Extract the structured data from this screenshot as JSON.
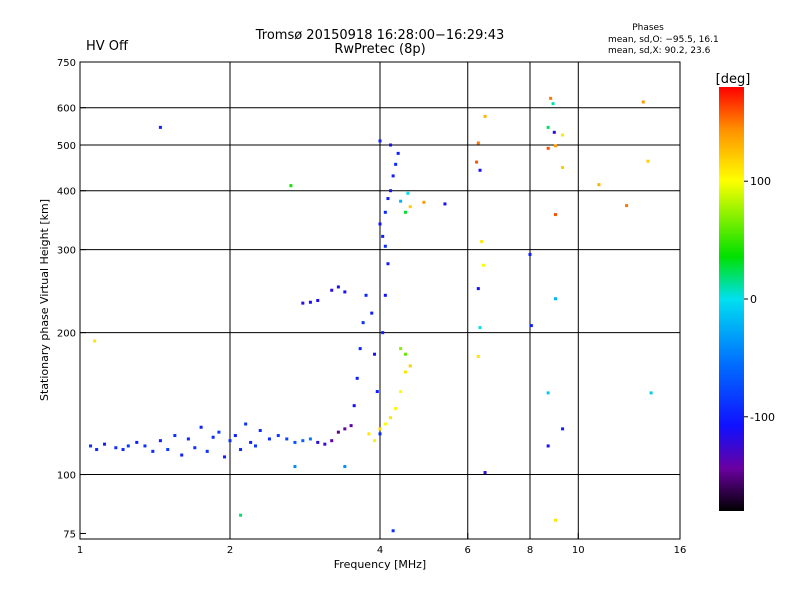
{
  "chart_data": {
    "type": "scatter",
    "title": "Tromsø 20150918 16:28:00−16:29:43",
    "subtitle": "RwPretec (8p)",
    "status_label": "HV Off",
    "status_color": "#dd0000",
    "phase_info": {
      "title": "Phases",
      "line1": "mean, sd,O: −95.5, 16.1",
      "line2": "mean, sd,X:  90.2, 23.6"
    },
    "xlabel": "Frequency [MHz]",
    "ylabel": "Stationary phase Virtual Height [km]",
    "xscale": "log",
    "yscale": "log",
    "xlim": [
      1,
      16
    ],
    "ylim": [
      73,
      750
    ],
    "x_ticks": [
      1,
      2,
      4,
      6,
      8,
      10,
      16
    ],
    "y_ticks": [
      75,
      100,
      200,
      300,
      400,
      500,
      600,
      750
    ],
    "x_gridlines": [
      2,
      4,
      6,
      8,
      10
    ],
    "y_gridlines": [
      100,
      200,
      300,
      400,
      500,
      600
    ],
    "colorbar": {
      "label": "[deg]",
      "range": [
        -180,
        180
      ],
      "ticks": [
        100,
        0,
        -100
      ]
    },
    "points": [
      [
        1.05,
        115,
        -90
      ],
      [
        1.08,
        113,
        -95
      ],
      [
        1.12,
        116,
        -100
      ],
      [
        1.18,
        114,
        -90
      ],
      [
        1.22,
        113,
        -95
      ],
      [
        1.25,
        115,
        -85
      ],
      [
        1.3,
        117,
        -100
      ],
      [
        1.35,
        115,
        -90
      ],
      [
        1.4,
        112,
        -95
      ],
      [
        1.45,
        118,
        -100
      ],
      [
        1.5,
        113,
        -85
      ],
      [
        1.55,
        121,
        -90
      ],
      [
        1.6,
        110,
        -100
      ],
      [
        1.65,
        119,
        -95
      ],
      [
        1.7,
        114,
        -90
      ],
      [
        1.75,
        126,
        -100
      ],
      [
        1.8,
        112,
        -90
      ],
      [
        1.85,
        120,
        -95
      ],
      [
        1.9,
        123,
        -85
      ],
      [
        1.95,
        109,
        -100
      ],
      [
        2.0,
        118,
        -90
      ],
      [
        2.05,
        121,
        -100
      ],
      [
        2.1,
        113,
        -95
      ],
      [
        2.15,
        128,
        -90
      ],
      [
        2.2,
        117,
        -100
      ],
      [
        2.25,
        115,
        -85
      ],
      [
        2.3,
        124,
        -95
      ],
      [
        2.4,
        119,
        -90
      ],
      [
        2.5,
        121,
        -85
      ],
      [
        2.6,
        119,
        -80
      ],
      [
        2.7,
        117,
        -70
      ],
      [
        2.8,
        118,
        -60
      ],
      [
        2.9,
        119,
        -50
      ],
      [
        3.0,
        117,
        -120
      ],
      [
        3.1,
        116,
        -125
      ],
      [
        3.2,
        118,
        -140
      ],
      [
        3.3,
        123,
        -150
      ],
      [
        3.4,
        125,
        -145
      ],
      [
        3.5,
        127,
        -140
      ],
      [
        3.55,
        140,
        -110
      ],
      [
        3.6,
        160,
        -100
      ],
      [
        3.65,
        185,
        -95
      ],
      [
        3.7,
        210,
        -90
      ],
      [
        3.75,
        240,
        -95
      ],
      [
        3.4,
        244,
        -110
      ],
      [
        3.3,
        250,
        -115
      ],
      [
        3.2,
        246,
        -120
      ],
      [
        3.0,
        234,
        -115
      ],
      [
        2.9,
        232,
        -110
      ],
      [
        2.8,
        231,
        -120
      ],
      [
        3.85,
        220,
        -100
      ],
      [
        3.9,
        180,
        -105
      ],
      [
        3.95,
        150,
        -100
      ],
      [
        4.0,
        122,
        -95
      ],
      [
        4.05,
        200,
        -100
      ],
      [
        4.1,
        240,
        -105
      ],
      [
        4.15,
        280,
        -100
      ],
      [
        4.1,
        305,
        -95
      ],
      [
        4.05,
        320,
        -100
      ],
      [
        4.0,
        340,
        -110
      ],
      [
        4.1,
        360,
        -95
      ],
      [
        4.15,
        385,
        -100
      ],
      [
        4.2,
        400,
        -105
      ],
      [
        4.25,
        430,
        -100
      ],
      [
        4.3,
        455,
        -95
      ],
      [
        4.35,
        480,
        -100
      ],
      [
        4.2,
        500,
        -110
      ],
      [
        4.0,
        510,
        -100
      ],
      [
        4.4,
        380,
        -20
      ],
      [
        4.5,
        360,
        30
      ],
      [
        4.55,
        395,
        0
      ],
      [
        4.6,
        370,
        120
      ],
      [
        3.8,
        122,
        110
      ],
      [
        3.9,
        118,
        105
      ],
      [
        4.0,
        125,
        115
      ],
      [
        4.1,
        128,
        100
      ],
      [
        4.2,
        132,
        110
      ],
      [
        4.3,
        138,
        105
      ],
      [
        4.4,
        150,
        100
      ],
      [
        4.5,
        165,
        110
      ],
      [
        4.6,
        170,
        120
      ],
      [
        4.4,
        185,
        70
      ],
      [
        4.5,
        180,
        60
      ],
      [
        1.07,
        192,
        110
      ],
      [
        1.45,
        545,
        -100
      ],
      [
        2.65,
        410,
        40
      ],
      [
        2.1,
        82,
        20
      ],
      [
        2.7,
        104,
        -40
      ],
      [
        3.4,
        104,
        -40
      ],
      [
        4.25,
        76,
        -90
      ],
      [
        4.9,
        378,
        140
      ],
      [
        5.4,
        375,
        -110
      ],
      [
        6.3,
        505,
        150
      ],
      [
        6.25,
        460,
        160
      ],
      [
        6.35,
        442,
        -110
      ],
      [
        6.5,
        575,
        130
      ],
      [
        6.4,
        312,
        110
      ],
      [
        6.45,
        278,
        100
      ],
      [
        6.3,
        248,
        -110
      ],
      [
        6.35,
        205,
        0
      ],
      [
        6.3,
        178,
        110
      ],
      [
        6.5,
        101,
        -120
      ],
      [
        8.0,
        293,
        -100
      ],
      [
        8.05,
        207,
        -100
      ],
      [
        8.8,
        628,
        150
      ],
      [
        8.9,
        612,
        10
      ],
      [
        8.7,
        545,
        20
      ],
      [
        8.95,
        532,
        -120
      ],
      [
        9.3,
        525,
        110
      ],
      [
        8.7,
        492,
        160
      ],
      [
        9.0,
        498,
        140
      ],
      [
        9.3,
        448,
        120
      ],
      [
        9.0,
        356,
        160
      ],
      [
        9.0,
        236,
        -20
      ],
      [
        8.7,
        149,
        -10
      ],
      [
        9.3,
        125,
        -100
      ],
      [
        8.7,
        115,
        -110
      ],
      [
        9.0,
        80,
        110
      ],
      [
        11.0,
        412,
        130
      ],
      [
        12.5,
        372,
        150
      ],
      [
        13.5,
        617,
        140
      ],
      [
        13.8,
        462,
        120
      ],
      [
        14.0,
        149,
        -10
      ]
    ]
  }
}
